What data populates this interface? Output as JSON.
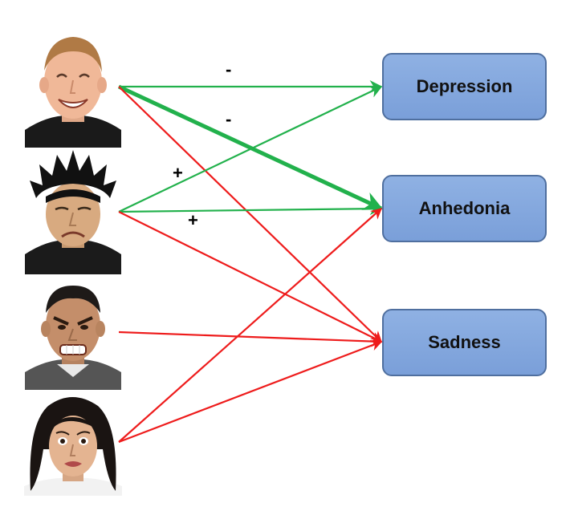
{
  "outcomes": [
    {
      "id": "depression",
      "label": "Depression"
    },
    {
      "id": "anhedonia",
      "label": "Anhedonia"
    },
    {
      "id": "sadness",
      "label": "Sadness"
    }
  ],
  "faces": [
    {
      "id": "happy",
      "icon": "smiling-man-face-icon"
    },
    {
      "id": "sad",
      "icon": "sad-man-face-icon"
    },
    {
      "id": "angry",
      "icon": "angry-man-face-icon"
    },
    {
      "id": "fearful",
      "icon": "fearful-woman-face-icon"
    }
  ],
  "edges": [
    {
      "from": "happy",
      "to": "depression",
      "polarity": "negative",
      "emphasis": "normal"
    },
    {
      "from": "happy",
      "to": "anhedonia",
      "polarity": "negative",
      "emphasis": "strong"
    },
    {
      "from": "happy",
      "to": "sadness",
      "polarity": "positive",
      "emphasis": "normal"
    },
    {
      "from": "sad",
      "to": "depression",
      "polarity": "negative",
      "emphasis": "normal"
    },
    {
      "from": "sad",
      "to": "anhedonia",
      "polarity": "negative",
      "emphasis": "normal"
    },
    {
      "from": "sad",
      "to": "sadness",
      "polarity": "positive",
      "emphasis": "normal"
    },
    {
      "from": "angry",
      "to": "sadness",
      "polarity": "positive",
      "emphasis": "normal"
    },
    {
      "from": "fearful",
      "to": "anhedonia",
      "polarity": "positive",
      "emphasis": "normal"
    },
    {
      "from": "fearful",
      "to": "sadness",
      "polarity": "positive",
      "emphasis": "normal"
    }
  ],
  "signs": [
    "-",
    "-",
    "+",
    "+"
  ],
  "colors": {
    "negative": "#22b14c",
    "positive": "#ee1c1c",
    "box_fill": "#86a8e0",
    "box_border": "#4f6f9f"
  }
}
